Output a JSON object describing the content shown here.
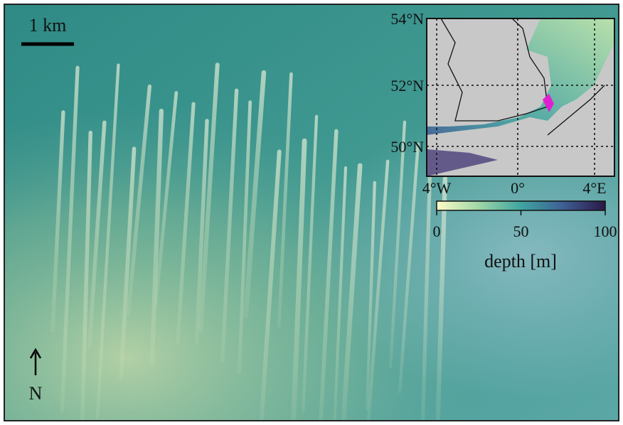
{
  "scale_bar": {
    "label": "1 km"
  },
  "north_arrow": {
    "label": "N"
  },
  "inset": {
    "lat_labels": [
      "54°N",
      "52°N",
      "50°N"
    ],
    "lon_labels": [
      "4°W",
      "0°",
      "4°E"
    ],
    "colorbar": {
      "ticks": [
        0,
        50,
        100
      ],
      "label": "depth [m]"
    }
  }
}
